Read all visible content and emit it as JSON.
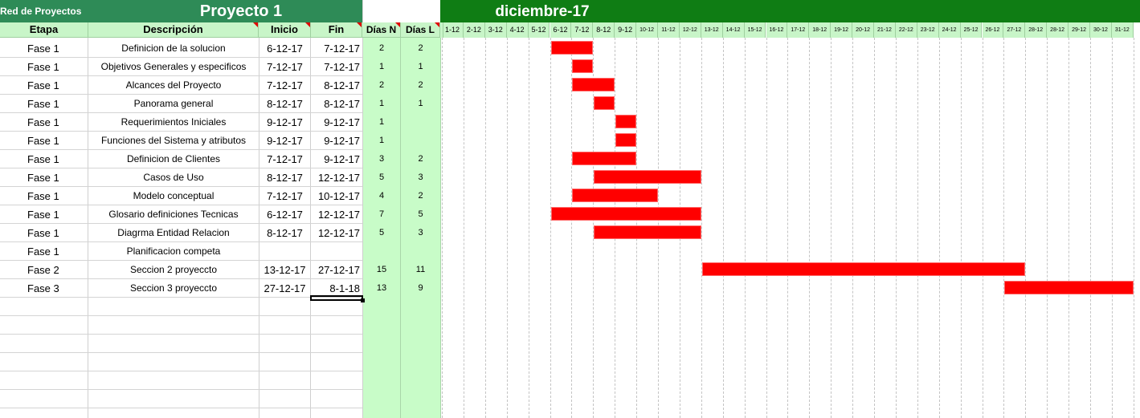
{
  "header": {
    "app_label": "Red de Proyectos",
    "project_title": "Proyecto 1",
    "month_title": "diciembre-17"
  },
  "columns": {
    "etapa": "Etapa",
    "descripcion": "Descripción",
    "inicio": "Inicio",
    "fin": "Fin",
    "dias_n": "Días N",
    "dias_l": "Días L"
  },
  "days": [
    "1-12",
    "2-12",
    "3-12",
    "4-12",
    "5-12",
    "6-12",
    "7-12",
    "8-12",
    "9-12",
    "10-12",
    "11-12",
    "12-12",
    "13-12",
    "14-12",
    "15-12",
    "16-12",
    "17-12",
    "18-12",
    "19-12",
    "20-12",
    "21-12",
    "22-12",
    "23-12",
    "24-12",
    "25-12",
    "26-12",
    "27-12",
    "28-12",
    "28-12",
    "29-12",
    "30-12",
    "31-12"
  ],
  "tasks": [
    {
      "etapa": "Fase 1",
      "descripcion": "Definicion de la solucion",
      "inicio": "6-12-17",
      "fin": "7-12-17",
      "dias_n": "2",
      "dias_l": "2",
      "start_day": 6,
      "end_day": 7
    },
    {
      "etapa": "Fase 1",
      "descripcion": "Objetivos Generales y especificos",
      "inicio": "7-12-17",
      "fin": "7-12-17",
      "dias_n": "1",
      "dias_l": "1",
      "start_day": 7,
      "end_day": 7
    },
    {
      "etapa": "Fase 1",
      "descripcion": "Alcances del Proyecto",
      "inicio": "7-12-17",
      "fin": "8-12-17",
      "dias_n": "2",
      "dias_l": "2",
      "start_day": 7,
      "end_day": 8
    },
    {
      "etapa": "Fase 1",
      "descripcion": "Panorama general",
      "inicio": "8-12-17",
      "fin": "8-12-17",
      "dias_n": "1",
      "dias_l": "1",
      "start_day": 8,
      "end_day": 8
    },
    {
      "etapa": "Fase 1",
      "descripcion": "Requerimientos Iniciales",
      "inicio": "9-12-17",
      "fin": "9-12-17",
      "dias_n": "1",
      "dias_l": "",
      "start_day": 9,
      "end_day": 9
    },
    {
      "etapa": "Fase 1",
      "descripcion": "Funciones del Sistema y atributos",
      "inicio": "9-12-17",
      "fin": "9-12-17",
      "dias_n": "1",
      "dias_l": "",
      "start_day": 9,
      "end_day": 9
    },
    {
      "etapa": "Fase 1",
      "descripcion": "Definicion de Clientes",
      "inicio": "7-12-17",
      "fin": "9-12-17",
      "dias_n": "3",
      "dias_l": "2",
      "start_day": 7,
      "end_day": 9
    },
    {
      "etapa": "Fase 1",
      "descripcion": "Casos de Uso",
      "inicio": "8-12-17",
      "fin": "12-12-17",
      "dias_n": "5",
      "dias_l": "3",
      "start_day": 8,
      "end_day": 12
    },
    {
      "etapa": "Fase 1",
      "descripcion": "Modelo conceptual",
      "inicio": "7-12-17",
      "fin": "10-12-17",
      "dias_n": "4",
      "dias_l": "2",
      "start_day": 7,
      "end_day": 10
    },
    {
      "etapa": "Fase 1",
      "descripcion": "Glosario definiciones Tecnicas",
      "inicio": "6-12-17",
      "fin": "12-12-17",
      "dias_n": "7",
      "dias_l": "5",
      "start_day": 6,
      "end_day": 12
    },
    {
      "etapa": "Fase 1",
      "descripcion": "Diagrma Entidad Relacion",
      "inicio": "8-12-17",
      "fin": "12-12-17",
      "dias_n": "5",
      "dias_l": "3",
      "start_day": 8,
      "end_day": 12
    },
    {
      "etapa": "Fase 1",
      "descripcion": "Planificacion competa",
      "inicio": "",
      "fin": "",
      "dias_n": "",
      "dias_l": "",
      "start_day": null,
      "end_day": null
    },
    {
      "etapa": "Fase 2",
      "descripcion": "Seccion 2 proyeccto",
      "inicio": "13-12-17",
      "fin": "27-12-17",
      "dias_n": "15",
      "dias_l": "11",
      "start_day": 13,
      "end_day": 27
    },
    {
      "etapa": "Fase 3",
      "descripcion": "Seccion 3 proyeccto",
      "inicio": "27-12-17",
      "fin": "8-1-18",
      "dias_n": "13",
      "dias_l": "9",
      "start_day": 27,
      "end_day": 32
    }
  ],
  "colors": {
    "title_band": "#2e8b57",
    "month_band": "#0f7d14",
    "header_light": "#c8f5c8",
    "bar": "#ff0000"
  }
}
